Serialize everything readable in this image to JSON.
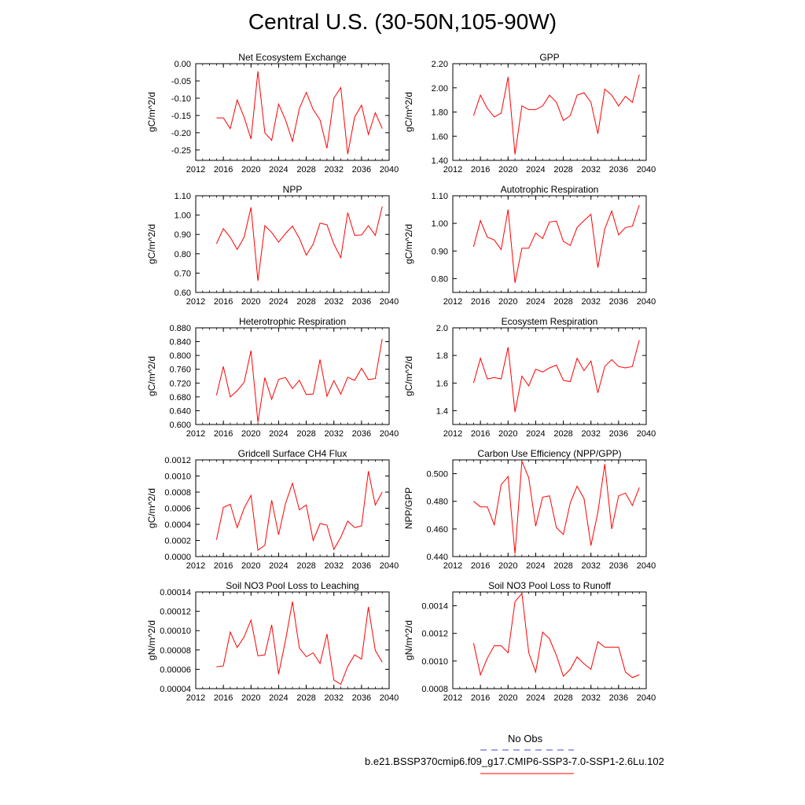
{
  "page": {
    "title": "Central U.S. (30-50N,105-90W)"
  },
  "legend": {
    "obs_label": "No Obs",
    "obs_color": "#4444cc",
    "case_label": "b.e21.BSSP370cmip6.f09_g17.CMIP6-SSP3-7.0-SSP1-2.6Lu.102",
    "case_color": "#ff0000"
  },
  "chart_data": [
    {
      "type": "line",
      "title": "Net Ecosystem Exchange",
      "ylabel": "gC/m^2/d",
      "xlim": [
        2012,
        2040
      ],
      "ylim": [
        -0.28,
        0.0
      ],
      "xticks": [
        "2012",
        "2016",
        "2020",
        "2024",
        "2028",
        "2032",
        "2036",
        "2040"
      ],
      "yticks": [
        "-0.25",
        "-0.20",
        "-0.15",
        "-0.10",
        "-0.05",
        "0.00"
      ],
      "x": [
        2015,
        2016,
        2017,
        2018,
        2019,
        2020,
        2021,
        2022,
        2023,
        2024,
        2025,
        2026,
        2027,
        2028,
        2029,
        2030,
        2031,
        2032,
        2033,
        2034,
        2035,
        2036,
        2037,
        2038,
        2039
      ],
      "series": [
        {
          "color": "#ff0000",
          "values": [
            -0.157,
            -0.157,
            -0.188,
            -0.105,
            -0.155,
            -0.218,
            -0.022,
            -0.2,
            -0.222,
            -0.117,
            -0.163,
            -0.225,
            -0.13,
            -0.083,
            -0.133,
            -0.163,
            -0.245,
            -0.1,
            -0.069,
            -0.262,
            -0.155,
            -0.12,
            -0.205,
            -0.142,
            -0.188
          ]
        }
      ]
    },
    {
      "type": "line",
      "title": "GPP",
      "ylabel": "gC/m^2/d",
      "xlim": [
        2012,
        2040
      ],
      "ylim": [
        1.4,
        2.2
      ],
      "xticks": [
        "2012",
        "2016",
        "2020",
        "2024",
        "2028",
        "2032",
        "2036",
        "2040"
      ],
      "yticks": [
        "1.40",
        "1.60",
        "1.80",
        "2.00",
        "2.20"
      ],
      "x": [
        2015,
        2016,
        2017,
        2018,
        2019,
        2020,
        2021,
        2022,
        2023,
        2024,
        2025,
        2026,
        2027,
        2028,
        2029,
        2030,
        2031,
        2032,
        2033,
        2034,
        2035,
        2036,
        2037,
        2038,
        2039
      ],
      "series": [
        {
          "color": "#ff0000",
          "values": [
            1.77,
            1.94,
            1.83,
            1.76,
            1.79,
            2.09,
            1.45,
            1.85,
            1.82,
            1.82,
            1.85,
            1.94,
            1.88,
            1.73,
            1.77,
            1.94,
            1.96,
            1.88,
            1.62,
            1.99,
            1.94,
            1.85,
            1.93,
            1.88,
            2.11
          ]
        }
      ]
    },
    {
      "type": "line",
      "title": "NPP",
      "ylabel": "gC/m^2/d",
      "xlim": [
        2012,
        2040
      ],
      "ylim": [
        0.6,
        1.1
      ],
      "xticks": [
        "2012",
        "2016",
        "2020",
        "2024",
        "2028",
        "2032",
        "2036",
        "2040"
      ],
      "yticks": [
        "0.60",
        "0.70",
        "0.80",
        "0.90",
        "1.00",
        "1.10"
      ],
      "x": [
        2015,
        2016,
        2017,
        2018,
        2019,
        2020,
        2021,
        2022,
        2023,
        2024,
        2025,
        2026,
        2027,
        2028,
        2029,
        2030,
        2031,
        2032,
        2033,
        2034,
        2035,
        2036,
        2037,
        2038,
        2039
      ],
      "series": [
        {
          "color": "#ff0000",
          "values": [
            0.852,
            0.93,
            0.885,
            0.822,
            0.885,
            1.04,
            0.66,
            0.945,
            0.91,
            0.86,
            0.905,
            0.943,
            0.88,
            0.793,
            0.85,
            0.958,
            0.95,
            0.85,
            0.78,
            1.012,
            0.895,
            0.897,
            0.945,
            0.895,
            1.044
          ]
        }
      ]
    },
    {
      "type": "line",
      "title": "Autotrophic Respiration",
      "ylabel": "gC/m^2/d",
      "xlim": [
        2012,
        2040
      ],
      "ylim": [
        0.75,
        1.1
      ],
      "xticks": [
        "2012",
        "2016",
        "2020",
        "2024",
        "2028",
        "2032",
        "2036",
        "2040"
      ],
      "yticks": [
        "0.80",
        "0.90",
        "1.00",
        "1.10"
      ],
      "x": [
        2015,
        2016,
        2017,
        2018,
        2019,
        2020,
        2021,
        2022,
        2023,
        2024,
        2025,
        2026,
        2027,
        2028,
        2029,
        2030,
        2031,
        2032,
        2033,
        2034,
        2035,
        2036,
        2037,
        2038,
        2039
      ],
      "series": [
        {
          "color": "#ff0000",
          "values": [
            0.915,
            1.01,
            0.95,
            0.94,
            0.905,
            1.05,
            0.785,
            0.91,
            0.91,
            0.965,
            0.945,
            1.005,
            1.008,
            0.935,
            0.92,
            0.985,
            1.01,
            1.033,
            0.84,
            0.98,
            1.045,
            0.958,
            0.985,
            0.99,
            1.066
          ]
        }
      ]
    },
    {
      "type": "line",
      "title": "Heterotrophic Respiration",
      "ylabel": "gC/m^2/d",
      "xlim": [
        2012,
        2040
      ],
      "ylim": [
        0.6,
        0.88
      ],
      "xticks": [
        "2012",
        "2016",
        "2020",
        "2024",
        "2028",
        "2032",
        "2036",
        "2040"
      ],
      "yticks": [
        "0.600",
        "0.640",
        "0.680",
        "0.720",
        "0.760",
        "0.800",
        "0.840",
        "0.880"
      ],
      "x": [
        2015,
        2016,
        2017,
        2018,
        2019,
        2020,
        2021,
        2022,
        2023,
        2024,
        2025,
        2026,
        2027,
        2028,
        2029,
        2030,
        2031,
        2032,
        2033,
        2034,
        2035,
        2036,
        2037,
        2038,
        2039
      ],
      "series": [
        {
          "color": "#ff0000",
          "values": [
            0.685,
            0.768,
            0.68,
            0.698,
            0.722,
            0.814,
            0.607,
            0.736,
            0.673,
            0.731,
            0.736,
            0.704,
            0.728,
            0.687,
            0.688,
            0.788,
            0.682,
            0.727,
            0.688,
            0.737,
            0.728,
            0.763,
            0.73,
            0.733,
            0.848
          ]
        }
      ]
    },
    {
      "type": "line",
      "title": "Ecosystem Respiration",
      "ylabel": "gC/m^2/d",
      "xlim": [
        2012,
        2040
      ],
      "ylim": [
        1.3,
        2.0
      ],
      "xticks": [
        "2012",
        "2016",
        "2020",
        "2024",
        "2028",
        "2032",
        "2036",
        "2040"
      ],
      "yticks": [
        "1.4",
        "1.6",
        "1.8",
        "2.0"
      ],
      "x": [
        2015,
        2016,
        2017,
        2018,
        2019,
        2020,
        2021,
        2022,
        2023,
        2024,
        2025,
        2026,
        2027,
        2028,
        2029,
        2030,
        2031,
        2032,
        2033,
        2034,
        2035,
        2036,
        2037,
        2038,
        2039
      ],
      "series": [
        {
          "color": "#ff0000",
          "values": [
            1.6,
            1.78,
            1.63,
            1.64,
            1.63,
            1.86,
            1.39,
            1.65,
            1.58,
            1.7,
            1.68,
            1.71,
            1.73,
            1.62,
            1.61,
            1.78,
            1.69,
            1.76,
            1.53,
            1.72,
            1.77,
            1.72,
            1.71,
            1.72,
            1.91
          ]
        }
      ]
    },
    {
      "type": "line",
      "title": "Gridcell Surface CH4 Flux",
      "ylabel": "gC/m^2/d",
      "xlim": [
        2012,
        2040
      ],
      "ylim": [
        0.0,
        0.0012
      ],
      "xticks": [
        "2012",
        "2016",
        "2020",
        "2024",
        "2028",
        "2032",
        "2036",
        "2040"
      ],
      "yticks": [
        "0.0000",
        "0.0002",
        "0.0004",
        "0.0006",
        "0.0008",
        "0.0010",
        "0.0012"
      ],
      "x": [
        2015,
        2016,
        2017,
        2018,
        2019,
        2020,
        2021,
        2022,
        2023,
        2024,
        2025,
        2026,
        2027,
        2028,
        2029,
        2030,
        2031,
        2032,
        2033,
        2034,
        2035,
        2036,
        2037,
        2038,
        2039
      ],
      "series": [
        {
          "color": "#ff0000",
          "values": [
            0.00021,
            0.00061,
            0.00065,
            0.00036,
            0.0006,
            0.00076,
            8e-05,
            0.00014,
            0.0007,
            0.00027,
            0.00066,
            0.00091,
            0.00058,
            0.00064,
            0.0002,
            0.00041,
            0.00039,
            9e-05,
            0.00024,
            0.00044,
            0.00036,
            0.00038,
            0.00106,
            0.00064,
            0.0008
          ]
        }
      ]
    },
    {
      "type": "line",
      "title": "Carbon Use Efficiency (NPP/GPP)",
      "ylabel": "NPP/GPP",
      "xlim": [
        2012,
        2040
      ],
      "ylim": [
        0.44,
        0.51
      ],
      "xticks": [
        "2012",
        "2016",
        "2020",
        "2024",
        "2028",
        "2032",
        "2036",
        "2040"
      ],
      "yticks": [
        "0.440",
        "0.460",
        "0.480",
        "0.500"
      ],
      "x": [
        2015,
        2016,
        2017,
        2018,
        2019,
        2020,
        2021,
        2022,
        2023,
        2024,
        2025,
        2026,
        2027,
        2028,
        2029,
        2030,
        2031,
        2032,
        2033,
        2034,
        2035,
        2036,
        2037,
        2038,
        2039
      ],
      "series": [
        {
          "color": "#ff0000",
          "values": [
            0.48,
            0.476,
            0.476,
            0.463,
            0.492,
            0.498,
            0.442,
            0.509,
            0.497,
            0.462,
            0.483,
            0.484,
            0.461,
            0.456,
            0.479,
            0.491,
            0.482,
            0.448,
            0.472,
            0.507,
            0.46,
            0.484,
            0.486,
            0.477,
            0.49
          ]
        }
      ]
    },
    {
      "type": "line",
      "title": "Soil NO3 Pool Loss to Leaching",
      "ylabel": "gN/m^2/d",
      "xlim": [
        2012,
        2040
      ],
      "ylim": [
        4e-05,
        0.00014
      ],
      "xticks": [
        "2012",
        "2016",
        "2020",
        "2024",
        "2028",
        "2032",
        "2036",
        "2040"
      ],
      "yticks": [
        "0.00004",
        "0.00006",
        "0.00008",
        "0.00010",
        "0.00012",
        "0.00014"
      ],
      "x": [
        2015,
        2016,
        2017,
        2018,
        2019,
        2020,
        2021,
        2022,
        2023,
        2024,
        2025,
        2026,
        2027,
        2028,
        2029,
        2030,
        2031,
        2032,
        2033,
        2034,
        2035,
        2036,
        2037,
        2038,
        2039
      ],
      "series": [
        {
          "color": "#ff0000",
          "values": [
            6.25e-05,
            6.35e-05,
            9.85e-05,
            8.25e-05,
            9.35e-05,
            0.000111,
            7.4e-05,
            7.5e-05,
            0.000106,
            5.5e-05,
            9e-05,
            0.00013,
            8.2e-05,
            7.3e-05,
            7.7e-05,
            6.6e-05,
            9.65e-05,
            4.9e-05,
            4.45e-05,
            6.3e-05,
            7.5e-05,
            7.05e-05,
            0.0001245,
            7.95e-05,
            6.75e-05
          ]
        }
      ]
    },
    {
      "type": "line",
      "title": "Soil NO3 Pool Loss to Runoff",
      "ylabel": "gN/m^2/d",
      "xlim": [
        2012,
        2040
      ],
      "ylim": [
        0.0008,
        0.0015
      ],
      "xticks": [
        "2012",
        "2016",
        "2020",
        "2024",
        "2028",
        "2032",
        "2036",
        "2040"
      ],
      "yticks": [
        "0.0008",
        "0.0010",
        "0.0012",
        "0.0014"
      ],
      "x": [
        2015,
        2016,
        2017,
        2018,
        2019,
        2020,
        2021,
        2022,
        2023,
        2024,
        2025,
        2026,
        2027,
        2028,
        2029,
        2030,
        2031,
        2032,
        2033,
        2034,
        2035,
        2036,
        2037,
        2038,
        2039
      ],
      "series": [
        {
          "color": "#ff0000",
          "values": [
            0.00113,
            0.0009,
            0.00102,
            0.00111,
            0.00111,
            0.00106,
            0.00143,
            0.00149,
            0.00106,
            0.00092,
            0.00121,
            0.00116,
            0.00104,
            0.00089,
            0.00094,
            0.00103,
            0.00098,
            0.00094,
            0.00114,
            0.0011,
            0.0011,
            0.0011,
            0.00092,
            0.00088,
            0.0009
          ]
        }
      ]
    }
  ]
}
